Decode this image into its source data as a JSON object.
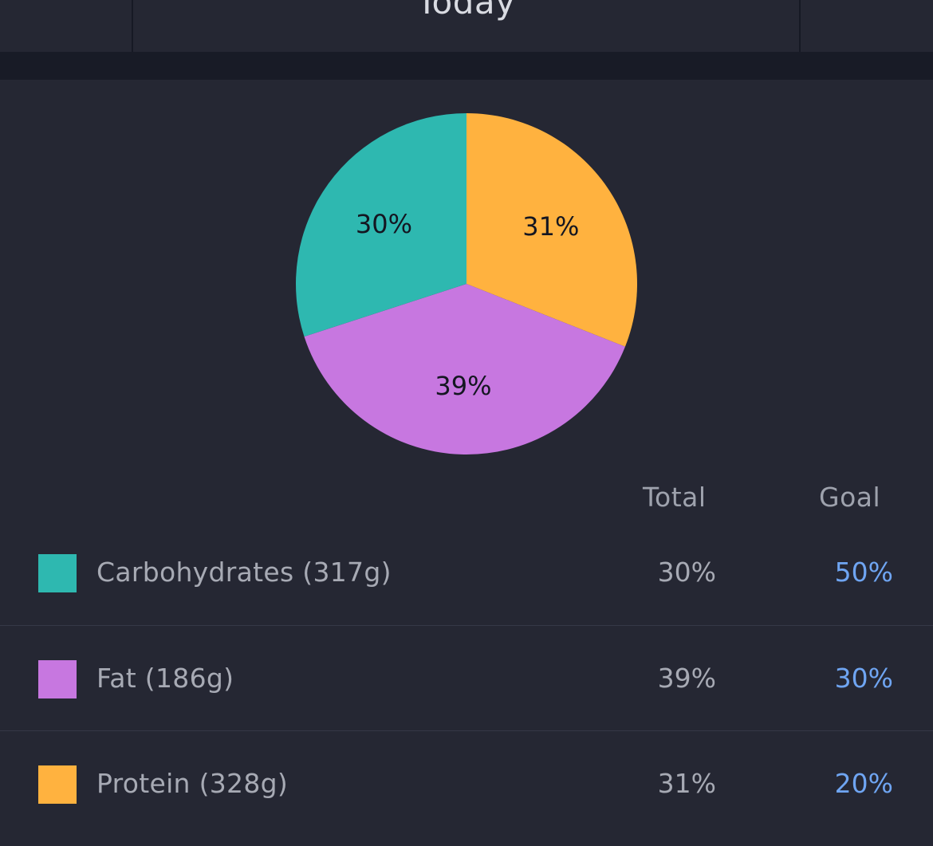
{
  "header": {
    "date_label": "Today"
  },
  "colors": {
    "carbohydrates": "#2eb8b0",
    "fat": "#c777e0",
    "protein": "#ffb23f",
    "goal_text": "#6fa5f2"
  },
  "chart_data": {
    "type": "pie",
    "slices": [
      {
        "name": "Protein",
        "value": 31,
        "label": "31%",
        "color": "#ffb23f"
      },
      {
        "name": "Fat",
        "value": 39,
        "label": "39%",
        "color": "#c777e0"
      },
      {
        "name": "Carbohydrates",
        "value": 30,
        "label": "30%",
        "color": "#2eb8b0"
      }
    ],
    "start": "top",
    "direction": "clockwise"
  },
  "table": {
    "headers": {
      "total": "Total",
      "goal": "Goal"
    },
    "rows": [
      {
        "name": "Carbohydrates (317g)",
        "total": "30%",
        "goal": "50%",
        "swatch_color": "#2eb8b0"
      },
      {
        "name": "Fat (186g)",
        "total": "39%",
        "goal": "30%",
        "swatch_color": "#c777e0"
      },
      {
        "name": "Protein (328g)",
        "total": "31%",
        "goal": "20%",
        "swatch_color": "#ffb23f"
      }
    ]
  }
}
